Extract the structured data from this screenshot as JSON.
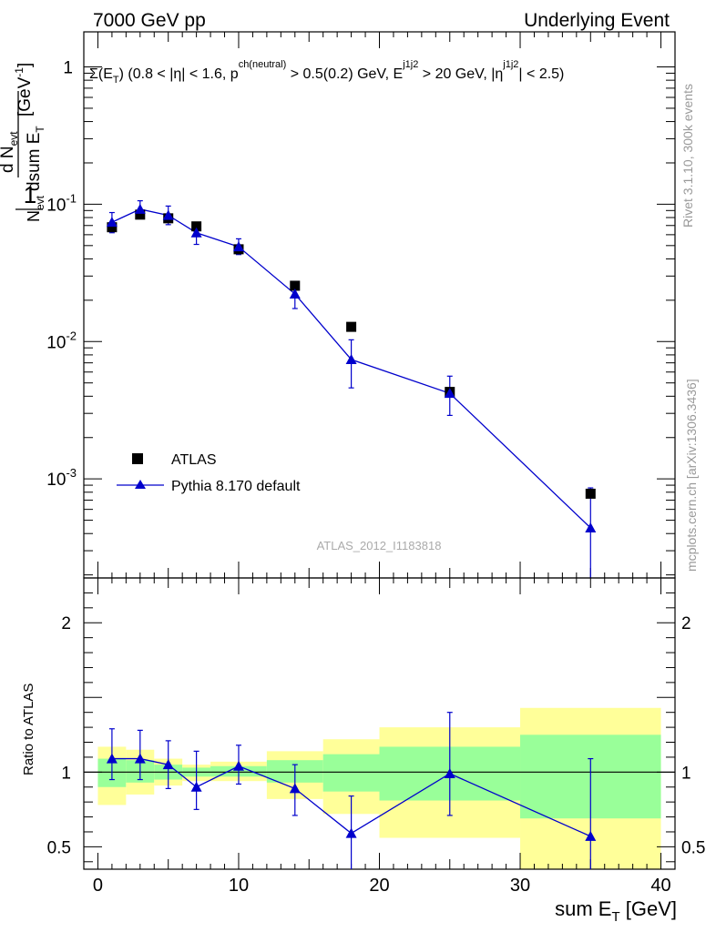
{
  "header": {
    "left": "7000 GeV pp",
    "right": "Underlying Event"
  },
  "side_labels": {
    "rivet": "Rivet 3.1.10,  300k events",
    "mcplots": "mcplots.cern.ch [arXiv:1306.3436]"
  },
  "colors": {
    "data": "#000000",
    "mc": "#0000cc",
    "band_inner": "#99ff99",
    "band_outer": "#ffff99"
  },
  "chart_data": [
    {
      "type": "scatter",
      "title": "Σ(E_T) (0.8 < |η| < 1.6, p_T^ch(neutral) > 0.5(0.2) GeV, E_T^j1j2 > 20 GeV, |η^j1j2| < 2.5)",
      "xlabel": "sum E_T [GeV]",
      "ylabel": "1/N_evt dN_evt/dsum E_T [GeV^-1]",
      "yscale": "log",
      "xlim": [
        -1,
        41
      ],
      "ylim": [
        0.00019,
        1.8
      ],
      "y_ticks": [
        {
          "value": 1,
          "label": "1"
        },
        {
          "value": 0.1,
          "label": "10^-1"
        },
        {
          "value": 0.01,
          "label": "10^-2"
        },
        {
          "value": 0.001,
          "label": "10^-3"
        }
      ],
      "watermark": "ATLAS_2012_I1183818",
      "legend": [
        "ATLAS",
        "Pythia 8.170 default"
      ],
      "legend_position": "lower-left",
      "series": [
        {
          "name": "ATLAS",
          "marker": "square",
          "x": [
            1,
            3,
            5,
            7,
            10,
            14,
            18,
            25,
            35
          ],
          "y": [
            0.068,
            0.084,
            0.079,
            0.069,
            0.047,
            0.0255,
            0.0128,
            0.0043,
            0.00078
          ]
        },
        {
          "name": "Pythia 8.170 default",
          "marker": "triangle",
          "x": [
            1,
            3,
            5,
            7,
            10,
            14,
            18,
            25,
            35
          ],
          "y": [
            0.074,
            0.092,
            0.083,
            0.062,
            0.049,
            0.0222,
            0.0074,
            0.0042,
            0.00044
          ],
          "yerr_low": [
            0.012,
            0.012,
            0.012,
            0.011,
            0.006,
            0.0048,
            0.0028,
            0.0013,
            0.00041
          ],
          "yerr_high": [
            0.013,
            0.014,
            0.014,
            0.012,
            0.007,
            0.005,
            0.0029,
            0.0014,
            0.00042
          ]
        }
      ]
    },
    {
      "type": "scatter",
      "ylabel": "Ratio to ATLAS",
      "xlabel": "sum E_T [GeV]",
      "xlim": [
        -1,
        41
      ],
      "ylim": [
        0.35,
        2.3
      ],
      "x_ticks": [
        0,
        10,
        20,
        30,
        40
      ],
      "y_ticks": [
        {
          "value": 0.5,
          "label": "0.5"
        },
        {
          "value": 1,
          "label": "1"
        },
        {
          "value": 2,
          "label": "2"
        }
      ],
      "reference_line": 1,
      "bands": [
        {
          "x0": 0,
          "x1": 2,
          "inner": [
            0.9,
            1.09
          ],
          "outer": [
            0.78,
            1.17
          ]
        },
        {
          "x0": 2,
          "x1": 4,
          "inner": [
            0.93,
            1.08
          ],
          "outer": [
            0.85,
            1.15
          ]
        },
        {
          "x0": 4,
          "x1": 6,
          "inner": [
            0.95,
            1.05
          ],
          "outer": [
            0.91,
            1.09
          ]
        },
        {
          "x0": 6,
          "x1": 8,
          "inner": [
            0.97,
            1.03
          ],
          "outer": [
            0.94,
            1.05
          ]
        },
        {
          "x0": 8,
          "x1": 12,
          "inner": [
            0.97,
            1.04
          ],
          "outer": [
            0.94,
            1.07
          ]
        },
        {
          "x0": 12,
          "x1": 16,
          "inner": [
            0.93,
            1.08
          ],
          "outer": [
            0.82,
            1.14
          ]
        },
        {
          "x0": 16,
          "x1": 20,
          "inner": [
            0.87,
            1.12
          ],
          "outer": [
            0.72,
            1.22
          ]
        },
        {
          "x0": 20,
          "x1": 30,
          "inner": [
            0.81,
            1.17
          ],
          "outer": [
            0.56,
            1.3
          ]
        },
        {
          "x0": 30,
          "x1": 40,
          "inner": [
            0.69,
            1.25
          ],
          "outer": [
            0.2,
            1.43
          ]
        }
      ],
      "series": [
        {
          "name": "Pythia 8.170 default / ATLAS",
          "marker": "triangle",
          "x": [
            1,
            3,
            5,
            7,
            10,
            14,
            18,
            25,
            35
          ],
          "y": [
            1.09,
            1.09,
            1.05,
            0.9,
            1.04,
            0.89,
            0.59,
            0.99,
            0.57
          ],
          "yerr_low": [
            0.14,
            0.14,
            0.16,
            0.15,
            0.12,
            0.18,
            0.3,
            0.28,
            0.55
          ],
          "yerr_high": [
            0.2,
            0.19,
            0.16,
            0.24,
            0.14,
            0.16,
            0.25,
            0.41,
            0.52
          ]
        }
      ]
    }
  ]
}
